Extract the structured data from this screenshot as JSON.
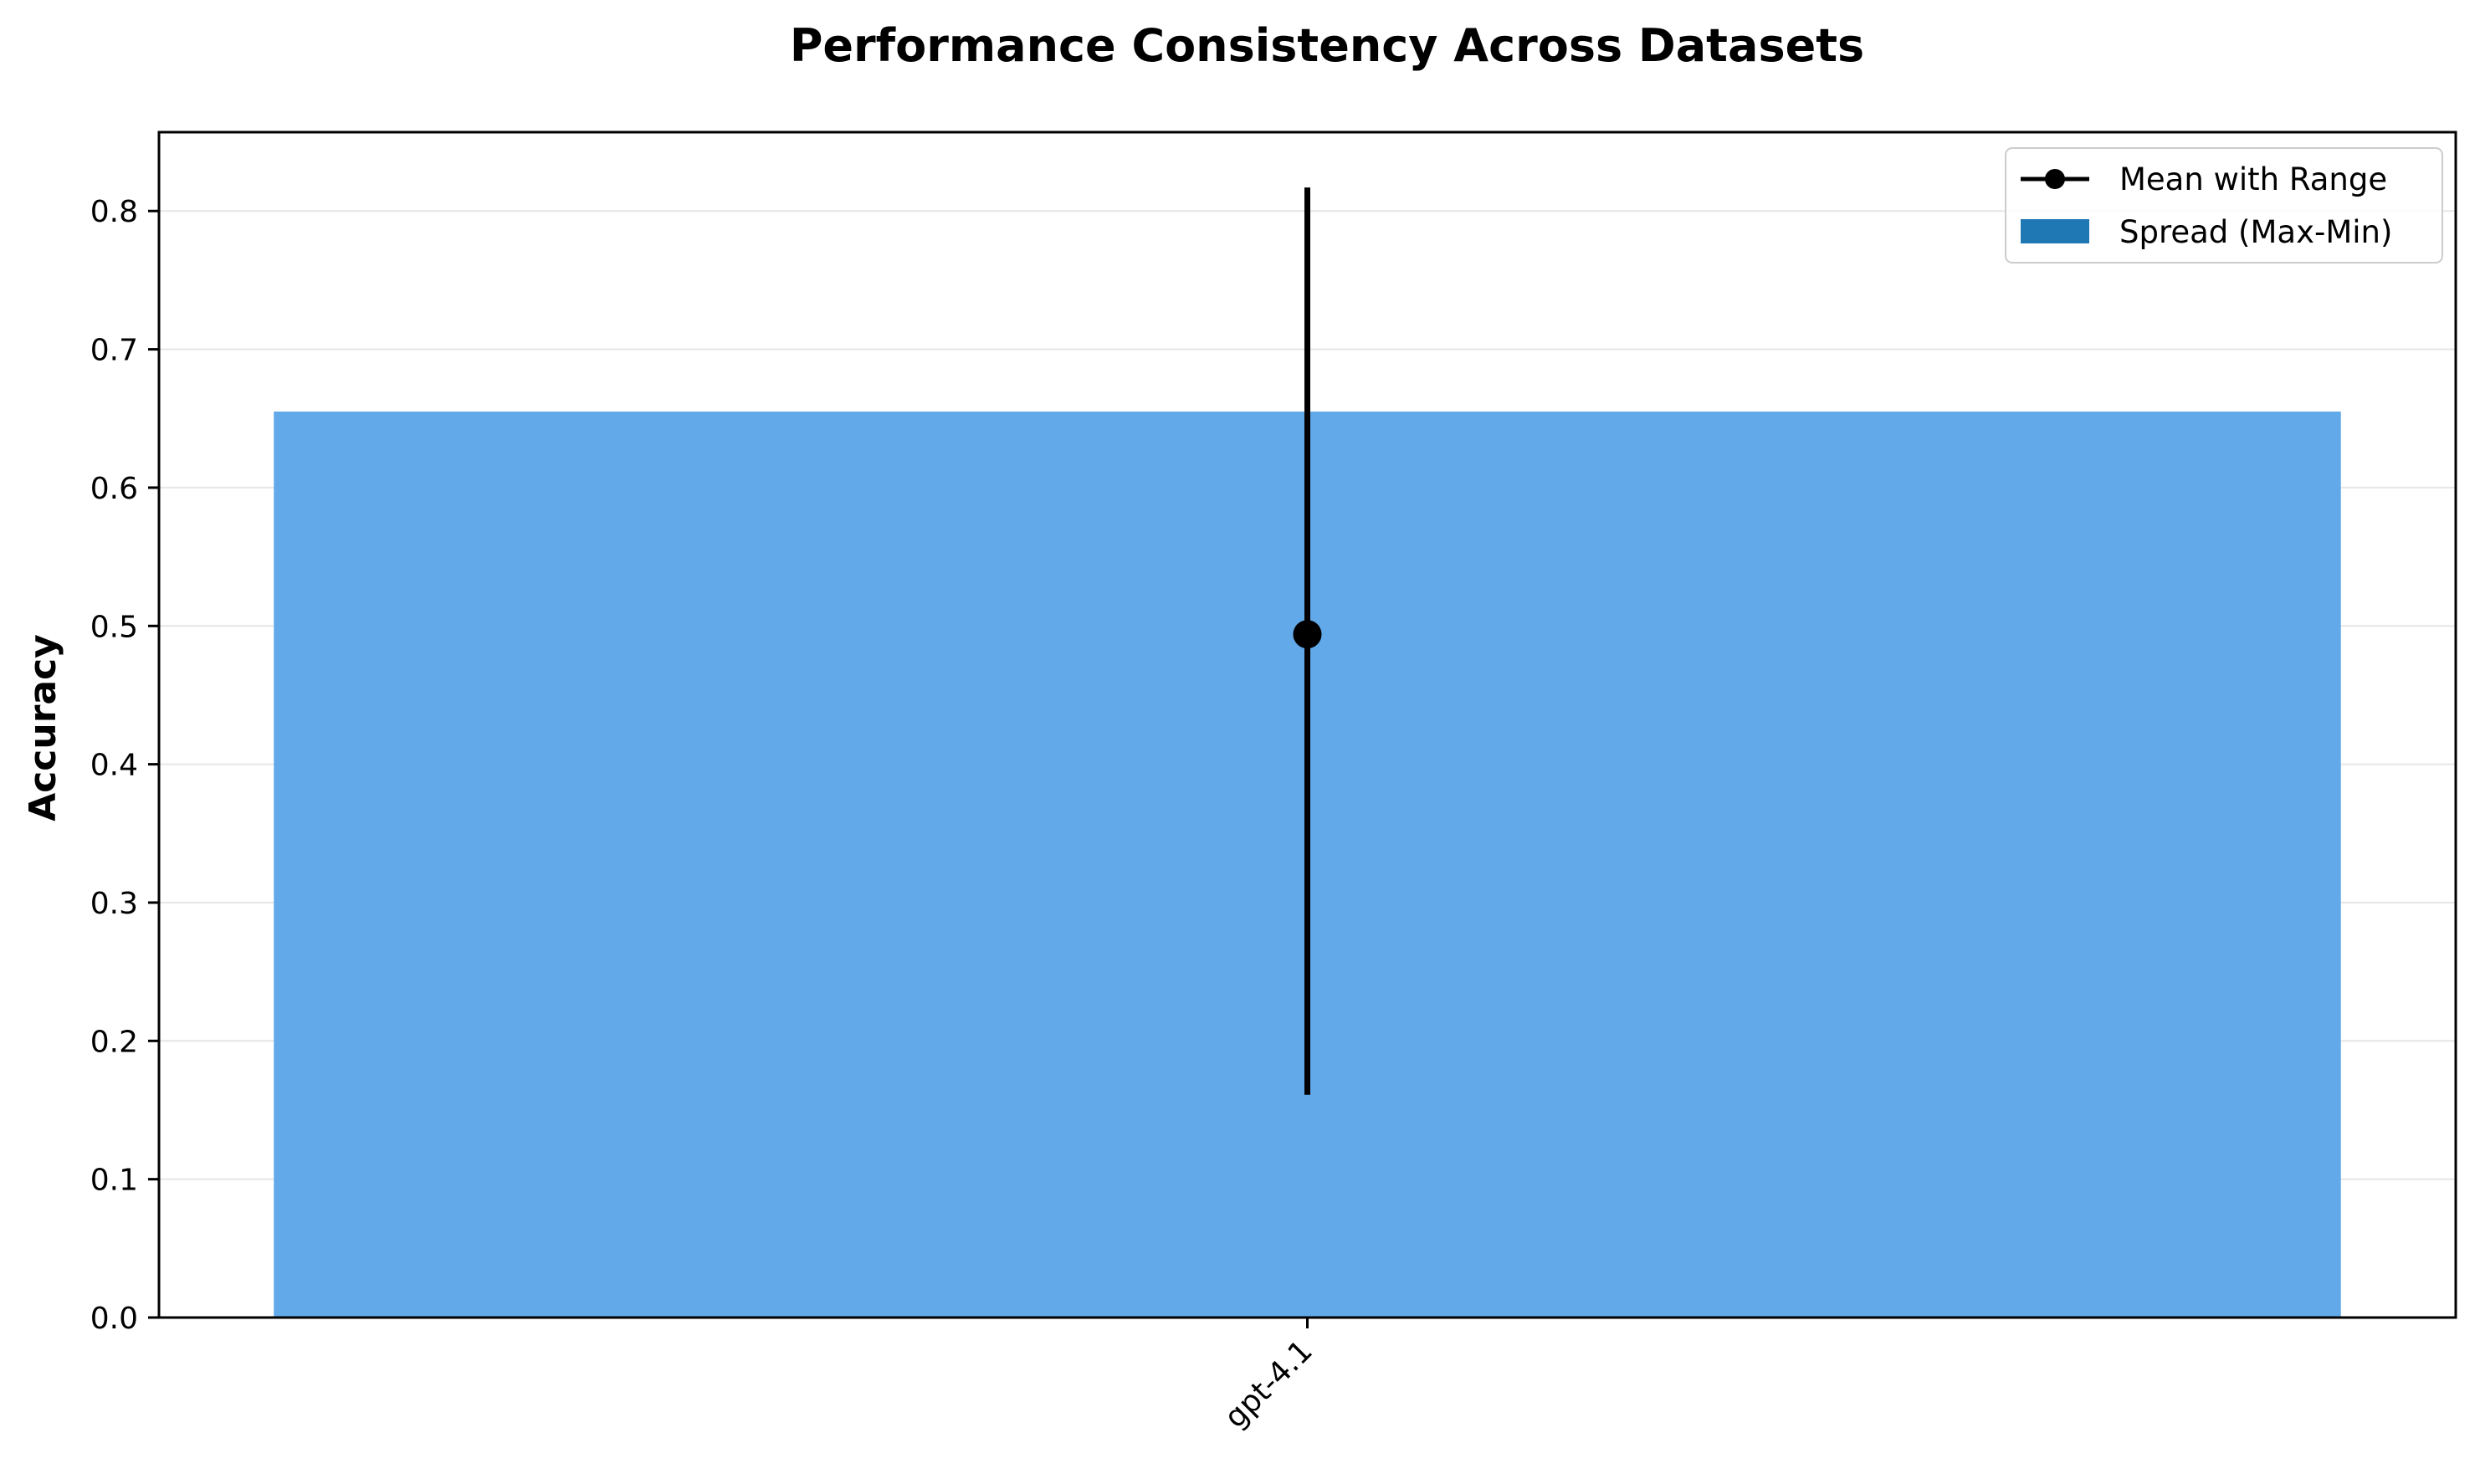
{
  "chart_data": {
    "type": "bar",
    "title": "Performance Consistency Across Datasets",
    "xlabel": "",
    "ylabel": "Accuracy",
    "categories": [
      "gpt-4.1"
    ],
    "ylim": [
      0,
      0.857
    ],
    "yticks": [
      0.0,
      0.1,
      0.2,
      0.3,
      0.4,
      0.5,
      0.6,
      0.7,
      0.8
    ],
    "ytick_labels": [
      "0.0",
      "0.1",
      "0.2",
      "0.3",
      "0.4",
      "0.5",
      "0.6",
      "0.7",
      "0.8"
    ],
    "grid": true,
    "series": [
      {
        "name": "Spread (Max-Min)",
        "kind": "bar",
        "values": [
          0.655
        ],
        "color": "#62a9e9",
        "legend_color": "#1f77b4"
      },
      {
        "name": "Mean with Range",
        "kind": "errorbar",
        "mean": [
          0.494
        ],
        "min": [
          0.161
        ],
        "max": [
          0.817
        ],
        "color": "#000000"
      }
    ],
    "legend": {
      "position": "top-right",
      "entries": [
        "Mean with Range",
        "Spread (Max-Min)"
      ]
    }
  }
}
